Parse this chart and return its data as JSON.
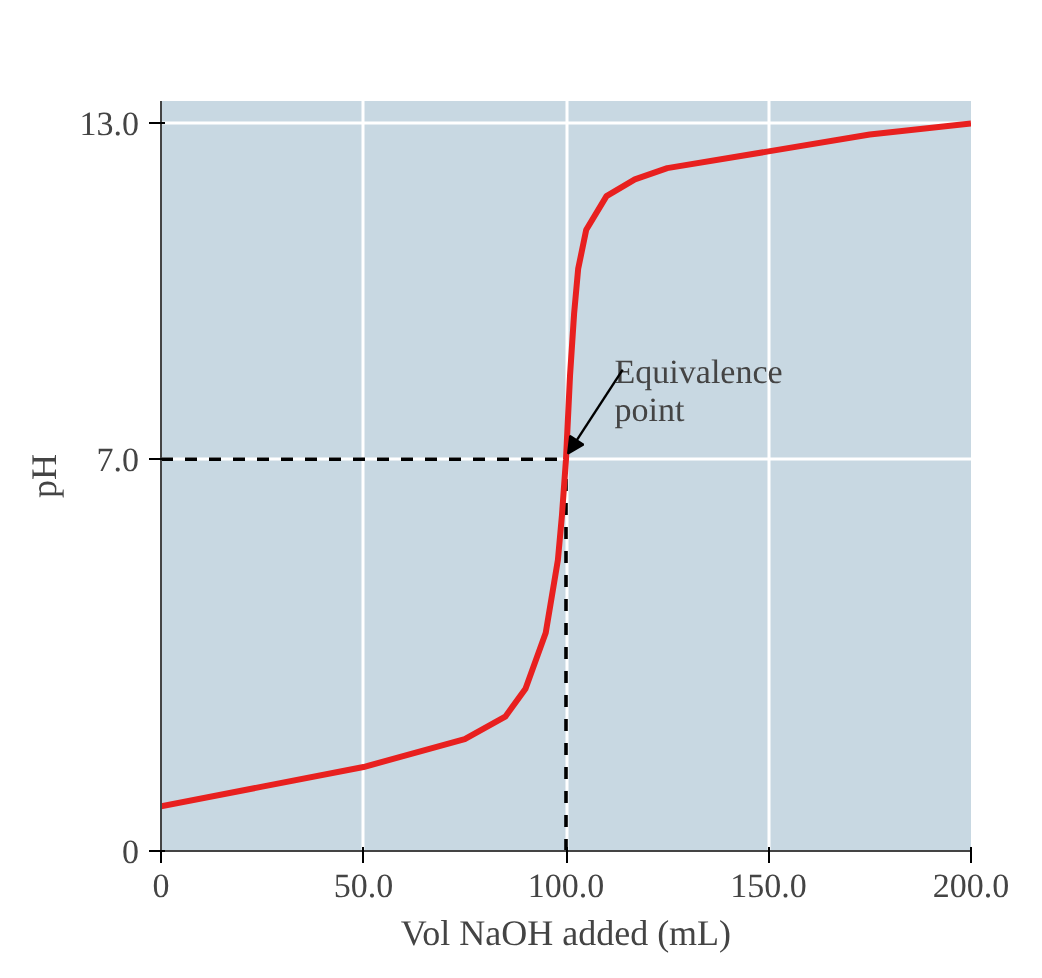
{
  "chart_data": {
    "type": "line",
    "xlabel": "Vol NaOH added (mL)",
    "ylabel": "pH",
    "x": [
      0,
      25,
      50,
      75,
      85,
      90,
      95,
      98,
      99,
      100,
      101,
      102,
      103,
      105,
      110,
      117,
      125,
      150,
      175,
      200
    ],
    "series": [
      {
        "color": "#e8201f",
        "values": [
          0.8,
          1.15,
          1.5,
          2.0,
          2.4,
          2.9,
          3.9,
          5.2,
          6.0,
          7.0,
          8.5,
          9.6,
          10.4,
          11.1,
          11.7,
          12.0,
          12.2,
          12.5,
          12.8,
          13.0
        ]
      }
    ],
    "xlim": [
      0,
      200
    ],
    "ylim": [
      0,
      13.4
    ],
    "xticks": [
      {
        "value": 0,
        "label": "0"
      },
      {
        "value": 50,
        "label": "50.0"
      },
      {
        "value": 100,
        "label": "100.0"
      },
      {
        "value": 150,
        "label": "150.0"
      },
      {
        "value": 200,
        "label": "200.0"
      }
    ],
    "yticks": [
      {
        "value": 0,
        "label": "0"
      },
      {
        "value": 7,
        "label": "7.0"
      },
      {
        "value": 13,
        "label": "13.0"
      }
    ],
    "grid": true,
    "marker": "none",
    "line_style": "solid",
    "ref_lines": [
      {
        "axis": "y",
        "value": 7,
        "color": "#000000",
        "line_style": "dashed"
      },
      {
        "axis": "x",
        "value": 100,
        "color": "#000000",
        "line_style": "dashed"
      }
    ],
    "annotations": [
      {
        "text": "Equivalence\npoint",
        "x": 100,
        "y": 7
      }
    ]
  }
}
